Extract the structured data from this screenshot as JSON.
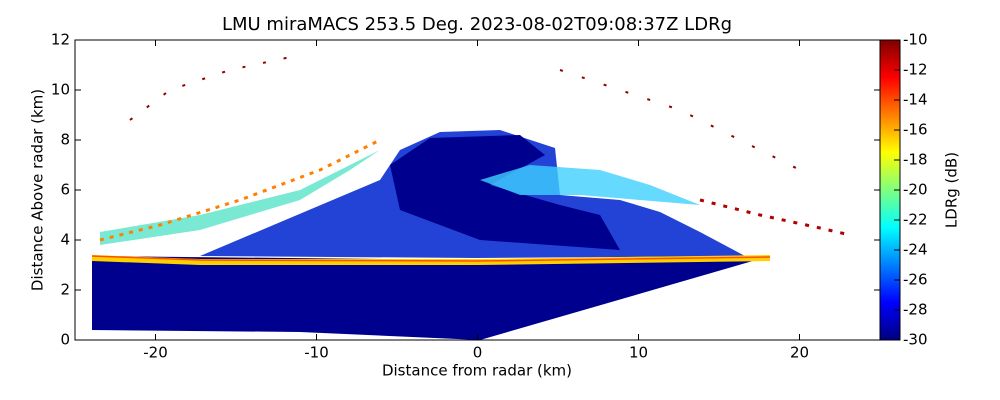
{
  "chart_data": {
    "type": "heatmap",
    "title": "LMU miraMACS 253.5 Deg. 2023-08-02T09:08:37Z  LDRg",
    "x_label": "Distance from radar (km)",
    "y_label": "Distance Above radar  (km)",
    "xlim": [
      -25,
      25
    ],
    "xticks": [
      -20,
      -10,
      0,
      10,
      20
    ],
    "ylim": [
      0,
      12
    ],
    "yticks": [
      0,
      2,
      4,
      6,
      8,
      10,
      12
    ],
    "colorbar": {
      "label": "LDRg (dB)",
      "colormap": "jet",
      "lim": [
        -30,
        -10
      ],
      "ticks": [
        -30,
        -28,
        -26,
        -24,
        -22,
        -20,
        -18,
        -16,
        -14,
        -12,
        -10
      ]
    }
  }
}
